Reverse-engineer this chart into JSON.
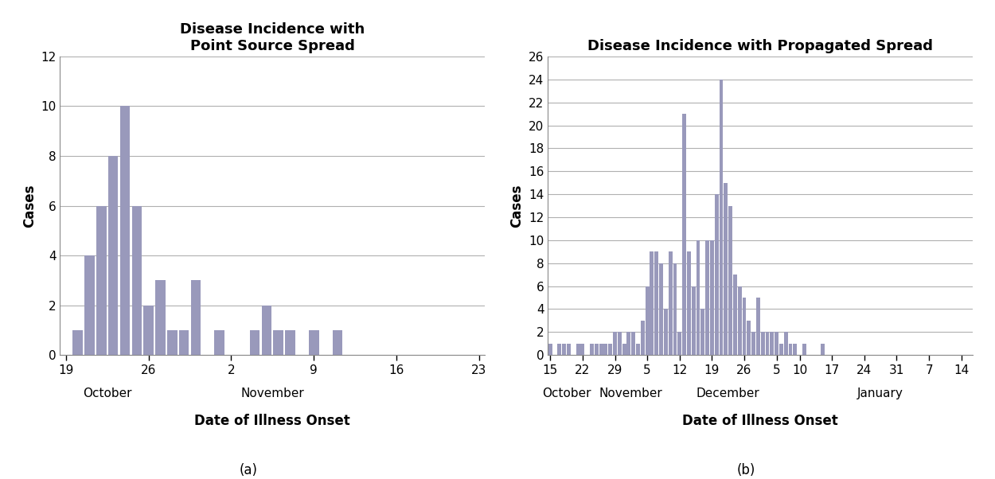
{
  "chart_a": {
    "title": "Disease Incidence with\nPoint Source Spread",
    "xlabel": "Date of Illness Onset",
    "ylabel": "Cases",
    "bar_color": "#9999bb",
    "ylim": [
      0,
      12
    ],
    "yticks": [
      0,
      2,
      4,
      6,
      8,
      10,
      12
    ],
    "xtick_labels": [
      "19",
      "26",
      "2",
      "9",
      "16",
      "23"
    ],
    "xtick_positions": [
      0,
      7,
      14,
      21,
      28,
      35
    ],
    "xlim": [
      -0.5,
      35.5
    ],
    "month_labels": [
      {
        "label": "October",
        "x": 3.5
      },
      {
        "label": "November",
        "x": 17.5
      }
    ],
    "bars": [
      0,
      1,
      4,
      6,
      8,
      10,
      6,
      2,
      3,
      1,
      1,
      3,
      0,
      1,
      0,
      0,
      1,
      2,
      1,
      1,
      0,
      1,
      0,
      1,
      0,
      0,
      0,
      0,
      0,
      0,
      0,
      0,
      0,
      0,
      0,
      0
    ],
    "label": "(a)"
  },
  "chart_b": {
    "title": "Disease Incidence with Propagated Spread",
    "xlabel": "Date of Illness Onset",
    "ylabel": "Cases",
    "bar_color": "#9999bb",
    "ylim": [
      0,
      26
    ],
    "yticks": [
      0,
      2,
      4,
      6,
      8,
      10,
      12,
      14,
      16,
      18,
      20,
      22,
      24,
      26
    ],
    "xtick_labels": [
      "15",
      "22",
      "29",
      "5",
      "12",
      "19",
      "26",
      "5",
      "10",
      "17",
      "24",
      "31",
      "7",
      "14"
    ],
    "xtick_positions": [
      0,
      7,
      14,
      21,
      28,
      35,
      42,
      49,
      54,
      61,
      68,
      75,
      82,
      89
    ],
    "xlim": [
      -0.5,
      91.5
    ],
    "month_labels": [
      {
        "label": "October",
        "x": 3.5
      },
      {
        "label": "November",
        "x": 17.5
      },
      {
        "label": "December",
        "x": 38.5
      },
      {
        "label": "January",
        "x": 71.5
      }
    ],
    "bars": [
      1,
      0,
      1,
      1,
      1,
      0,
      1,
      1,
      0,
      1,
      1,
      1,
      1,
      1,
      2,
      2,
      1,
      2,
      2,
      1,
      3,
      6,
      9,
      9,
      8,
      4,
      9,
      8,
      2,
      21,
      9,
      6,
      10,
      4,
      10,
      10,
      14,
      24,
      15,
      13,
      7,
      6,
      5,
      3,
      2,
      5,
      2,
      2,
      2,
      2,
      1,
      2,
      1,
      1,
      0,
      1,
      0,
      0,
      0,
      1
    ],
    "label": "(b)"
  },
  "background_color": "#ffffff",
  "grid_color": "#b0b0b0",
  "bar_edge_color": "none",
  "title_fontsize": 13,
  "axis_label_fontsize": 12,
  "tick_fontsize": 11,
  "label_fontsize": 12
}
